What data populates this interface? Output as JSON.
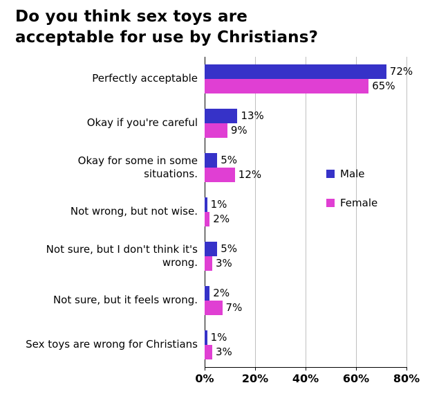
{
  "title": "Do you think sex toys are\nacceptable for use by Christians?",
  "chart_data": {
    "type": "bar",
    "orientation": "horizontal",
    "title": "Do you think sex toys are acceptable for use by Christians?",
    "categories": [
      "Perfectly acceptable",
      "Okay if you're careful",
      "Okay for some in some\nsituations.",
      "Not wrong, but not wise.",
      "Not sure, but I don't think it's\nwrong.",
      "Not sure, but it feels wrong.",
      "Sex toys are wrong for Christians"
    ],
    "series": [
      {
        "name": "Male",
        "color": "#3632C8",
        "values": [
          72,
          13,
          5,
          1,
          5,
          2,
          1
        ]
      },
      {
        "name": "Female",
        "color": "#E03FD3",
        "values": [
          65,
          9,
          12,
          2,
          3,
          7,
          3
        ]
      }
    ],
    "value_suffix": "%",
    "x_ticks": [
      "0%",
      "20%",
      "40%",
      "60%",
      "80%"
    ],
    "xlim": [
      0,
      80
    ],
    "grid": "vertical",
    "legend_position": "right-middle",
    "colors": {
      "gridline": "#bfbfbf",
      "axis": "#000000",
      "background": "#ffffff",
      "text": "#000000"
    }
  }
}
